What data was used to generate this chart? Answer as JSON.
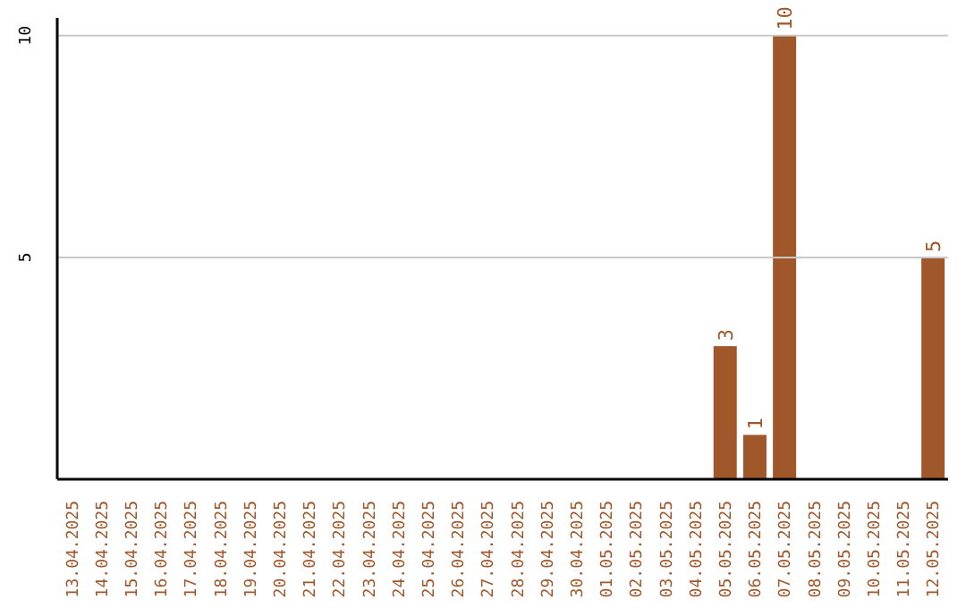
{
  "chart_data": {
    "type": "bar",
    "categories": [
      "13.04.2025",
      "14.04.2025",
      "15.04.2025",
      "16.04.2025",
      "17.04.2025",
      "18.04.2025",
      "19.04.2025",
      "20.04.2025",
      "21.04.2025",
      "22.04.2025",
      "23.04.2025",
      "24.04.2025",
      "25.04.2025",
      "26.04.2025",
      "27.04.2025",
      "28.04.2025",
      "29.04.2025",
      "30.04.2025",
      "01.05.2025",
      "02.05.2025",
      "03.05.2025",
      "04.05.2025",
      "05.05.2025",
      "06.05.2025",
      "07.05.2025",
      "08.05.2025",
      "09.05.2025",
      "10.05.2025",
      "11.05.2025",
      "12.05.2025"
    ],
    "values": [
      0,
      0,
      0,
      0,
      0,
      0,
      0,
      0,
      0,
      0,
      0,
      0,
      0,
      0,
      0,
      0,
      0,
      0,
      0,
      0,
      0,
      0,
      3,
      1,
      10,
      0,
      0,
      0,
      0,
      5
    ],
    "value_labels": [
      null,
      null,
      null,
      null,
      null,
      null,
      null,
      null,
      null,
      null,
      null,
      null,
      null,
      null,
      null,
      null,
      null,
      null,
      null,
      null,
      null,
      null,
      "3",
      "1",
      "10",
      null,
      null,
      null,
      null,
      "5"
    ],
    "color": "#a0572a",
    "ylim": [
      0,
      10.4
    ],
    "yticks": [
      5,
      10
    ],
    "grid": "y"
  }
}
